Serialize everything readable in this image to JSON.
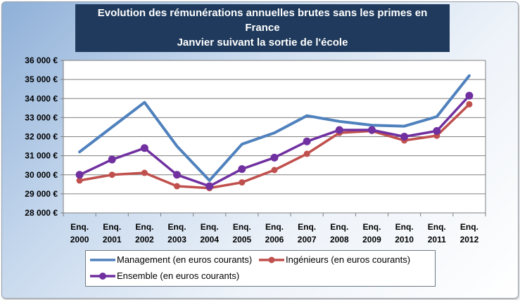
{
  "chart_data": {
    "type": "line",
    "title_lines": [
      "Evolution des rémunérations annuelles brutes sans les primes en",
      "France",
      "Janvier suivant la sortie de l'école"
    ],
    "categories": [
      [
        "Enq.",
        "2000"
      ],
      [
        "Enq.",
        "2001"
      ],
      [
        "Enq.",
        "2002"
      ],
      [
        "Enq.",
        "2003"
      ],
      [
        "Enq.",
        "2004"
      ],
      [
        "Enq.",
        "2005"
      ],
      [
        "Enq.",
        "2006"
      ],
      [
        "Enq.",
        "2007"
      ],
      [
        "Enq.",
        "2008"
      ],
      [
        "Enq.",
        "2009"
      ],
      [
        "Enq.",
        "2010"
      ],
      [
        "Enq.",
        "2011"
      ],
      [
        "Enq.",
        "2012"
      ]
    ],
    "ylim": [
      28000,
      36000
    ],
    "yticks": [
      28000,
      29000,
      30000,
      31000,
      32000,
      33000,
      34000,
      35000,
      36000
    ],
    "ytick_labels": [
      "28 000 €",
      "29 000 €",
      "30 000 €",
      "31 000 €",
      "32 000 €",
      "33 000 €",
      "34 000 €",
      "35 000 €",
      "36 000 €"
    ],
    "grid": true,
    "legend_position": "bottom",
    "series": [
      {
        "name": "Management (en euros courants)",
        "color": "#4f81bd",
        "marker": "none",
        "values": [
          31200,
          32500,
          33800,
          31500,
          29700,
          31600,
          32200,
          33100,
          32800,
          32600,
          32550,
          33050,
          35200
        ]
      },
      {
        "name": "Ingénieurs  (en euros courants)",
        "color": "#c0504d",
        "marker": "circle",
        "values": [
          29700,
          30000,
          30100,
          29400,
          29300,
          29600,
          30250,
          31100,
          32200,
          32300,
          31800,
          32050,
          33700
        ]
      },
      {
        "name": "Ensemble (en euros courants)",
        "color": "#7030a0",
        "marker": "circle",
        "values": [
          30000,
          30800,
          31400,
          30000,
          29400,
          30300,
          30900,
          31750,
          32350,
          32350,
          32000,
          32300,
          34150
        ]
      }
    ]
  }
}
